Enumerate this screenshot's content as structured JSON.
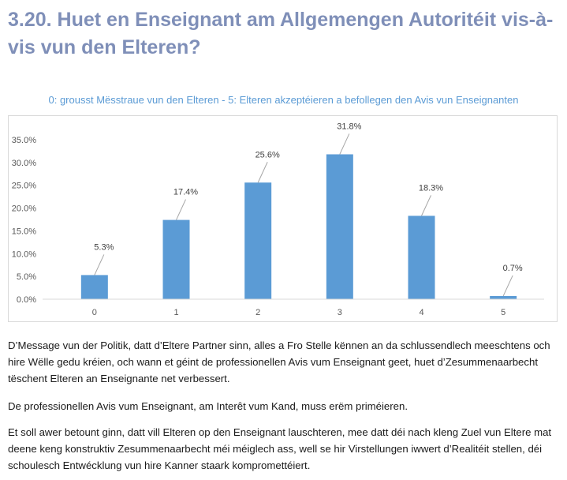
{
  "heading": "3.20. Huet en Enseignant am Allgemengen Autoritéit vis-à-vis vun den Elteren?",
  "paragraphs": [
    "D’Message vun der Politik, datt d’Eltere Partner sinn, alles a Fro Stelle kënnen an da schlussendlech meeschtens och hire Wëlle gedu kréien, och wann et géint de professionellen Avis vum Enseignant geet, huet d’Zesummenaarbecht tëschent Elteren an Enseignante net verbessert.",
    "De professionellen Avis vum Enseignant, am Interêt vum Kand, muss erëm priméieren.",
    "Et soll awer betount ginn, datt vill Elteren op den Enseignant lauschteren, mee datt déi nach kleng Zuel vun Eltere mat deene keng konstruktiv Zesummenaarbecht méi méiglech ass, well se hir Virstellungen iwwert d’Realitéit stellen, déi schoulesch Entwécklung vun hire Kanner staark kompromettéiert."
  ],
  "chart_data": {
    "type": "bar",
    "title": "0: grousst Mësstraue vun den Elteren - 5: Elteren akzeptéieren a befollegen den Avis vun Enseignanten",
    "categories": [
      "0",
      "1",
      "2",
      "3",
      "4",
      "5"
    ],
    "values": [
      5.3,
      17.4,
      25.6,
      31.8,
      18.3,
      0.7
    ],
    "data_labels": [
      "5.3%",
      "17.4%",
      "25.6%",
      "31.8%",
      "18.3%",
      "0.7%"
    ],
    "ylim": [
      0,
      35
    ],
    "yticks": [
      "0.0%",
      "5.0%",
      "10.0%",
      "15.0%",
      "20.0%",
      "25.0%",
      "30.0%",
      "35.0%"
    ],
    "xlabel": "",
    "ylabel": "",
    "grid": false,
    "colors": {
      "bar": "#5b9bd5",
      "axis": "#d9d9d9",
      "tick_text": "#595959",
      "label_text": "#404040",
      "leader": "#a6a6a6"
    }
  }
}
